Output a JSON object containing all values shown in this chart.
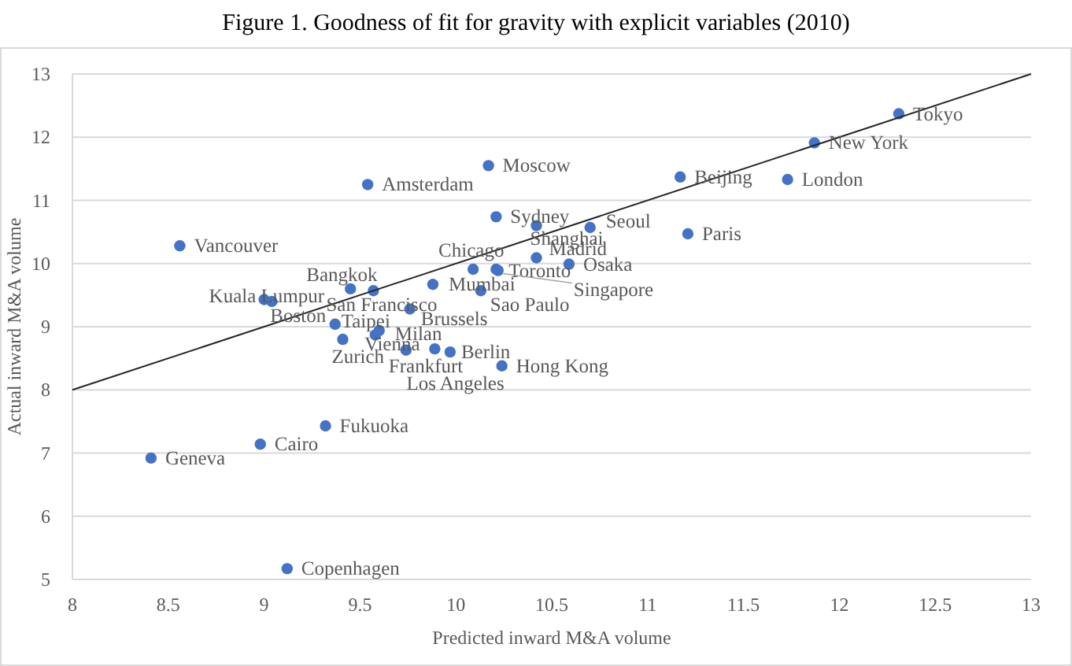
{
  "chart_data": {
    "type": "scatter",
    "title": "Figure 1.   Goodness of fit for gravity with explicit variables (2010)",
    "xlabel": "Predicted inward M&A volume",
    "ylabel": "Actual inward M&A volume",
    "xlim": [
      8,
      13
    ],
    "xticks": [
      8,
      8.5,
      9,
      9.5,
      10,
      10.5,
      11,
      11.5,
      12,
      12.5,
      13
    ],
    "ylim": [
      5,
      13
    ],
    "yticks": [
      5,
      6,
      7,
      8,
      9,
      10,
      11,
      12,
      13
    ],
    "grid": "y",
    "series": [
      {
        "color": "#4472c4",
        "marker": "circle",
        "x": [
          12.31,
          11.87,
          11.17,
          11.73,
          11.21,
          10.17,
          9.54,
          10.21,
          10.7,
          10.42,
          10.42,
          10.59,
          10.09,
          10.21,
          10.22,
          9.88,
          10.13,
          8.56,
          9.0,
          9.04,
          9.45,
          9.57,
          9.76,
          9.37,
          9.41,
          9.6,
          9.58,
          9.74,
          9.89,
          9.97,
          10.24,
          9.32,
          8.98,
          8.41,
          9.12
        ],
        "values": [
          12.37,
          11.91,
          11.37,
          11.33,
          10.47,
          11.55,
          11.25,
          10.74,
          10.57,
          10.6,
          10.09,
          9.99,
          9.91,
          9.91,
          9.89,
          9.67,
          9.57,
          10.28,
          9.43,
          9.4,
          9.6,
          9.57,
          9.28,
          9.04,
          8.8,
          8.94,
          8.87,
          8.63,
          8.65,
          8.6,
          8.38,
          7.43,
          7.14,
          6.92,
          5.17
        ]
      },
      {
        "type": "line",
        "color": "#262626",
        "line_style": "solid",
        "x": [
          8,
          13
        ],
        "values": [
          8,
          13
        ]
      }
    ],
    "annotations": [
      {
        "text": "Tokyo",
        "x": 12.31,
        "y": 12.37
      },
      {
        "text": "New York",
        "x": 11.87,
        "y": 11.91
      },
      {
        "text": "Beijing",
        "x": 11.17,
        "y": 11.37
      },
      {
        "text": "London",
        "x": 11.73,
        "y": 11.33
      },
      {
        "text": "Paris",
        "x": 11.21,
        "y": 10.47
      },
      {
        "text": "Moscow",
        "x": 10.17,
        "y": 11.55
      },
      {
        "text": "Amsterdam",
        "x": 9.54,
        "y": 11.25
      },
      {
        "text": "Sydney",
        "x": 10.21,
        "y": 10.74
      },
      {
        "text": "Seoul",
        "x": 10.7,
        "y": 10.57
      },
      {
        "text": "Shanghai",
        "x": 10.42,
        "y": 10.6
      },
      {
        "text": "Madrid",
        "x": 10.42,
        "y": 10.09
      },
      {
        "text": "Osaka",
        "x": 10.59,
        "y": 9.99
      },
      {
        "text": "Chicago",
        "x": 10.09,
        "y": 9.91
      },
      {
        "text": "Toronto",
        "x": 10.21,
        "y": 9.91
      },
      {
        "text": "Singapore",
        "x": 10.22,
        "y": 9.89
      },
      {
        "text": "Mumbai",
        "x": 9.88,
        "y": 9.67
      },
      {
        "text": "Sao Paulo",
        "x": 10.13,
        "y": 9.57
      },
      {
        "text": "Vancouver",
        "x": 8.56,
        "y": 10.28
      },
      {
        "text": "Kuala Lumpur",
        "x": 9.0,
        "y": 9.43
      },
      {
        "text": "Boston",
        "x": 9.04,
        "y": 9.4
      },
      {
        "text": "Bangkok",
        "x": 9.45,
        "y": 9.6
      },
      {
        "text": "San Francisco",
        "x": 9.57,
        "y": 9.57
      },
      {
        "text": "Brussels",
        "x": 9.76,
        "y": 9.28
      },
      {
        "text": "Taipei",
        "x": 9.37,
        "y": 9.04
      },
      {
        "text": "Zurich",
        "x": 9.41,
        "y": 8.8
      },
      {
        "text": "Milan",
        "x": 9.6,
        "y": 8.94
      },
      {
        "text": "Vienna",
        "x": 9.58,
        "y": 8.87
      },
      {
        "text": "Frankfurt",
        "x": 9.74,
        "y": 8.63
      },
      {
        "text": "Los Angeles",
        "x": 9.89,
        "y": 8.65
      },
      {
        "text": "Berlin",
        "x": 9.97,
        "y": 8.6
      },
      {
        "text": "Hong Kong",
        "x": 10.24,
        "y": 8.38
      },
      {
        "text": "Fukuoka",
        "x": 9.32,
        "y": 7.43
      },
      {
        "text": "Cairo",
        "x": 8.98,
        "y": 7.14
      },
      {
        "text": "Geneva",
        "x": 8.41,
        "y": 6.92
      },
      {
        "text": "Copenhagen",
        "x": 9.12,
        "y": 5.17
      }
    ]
  }
}
